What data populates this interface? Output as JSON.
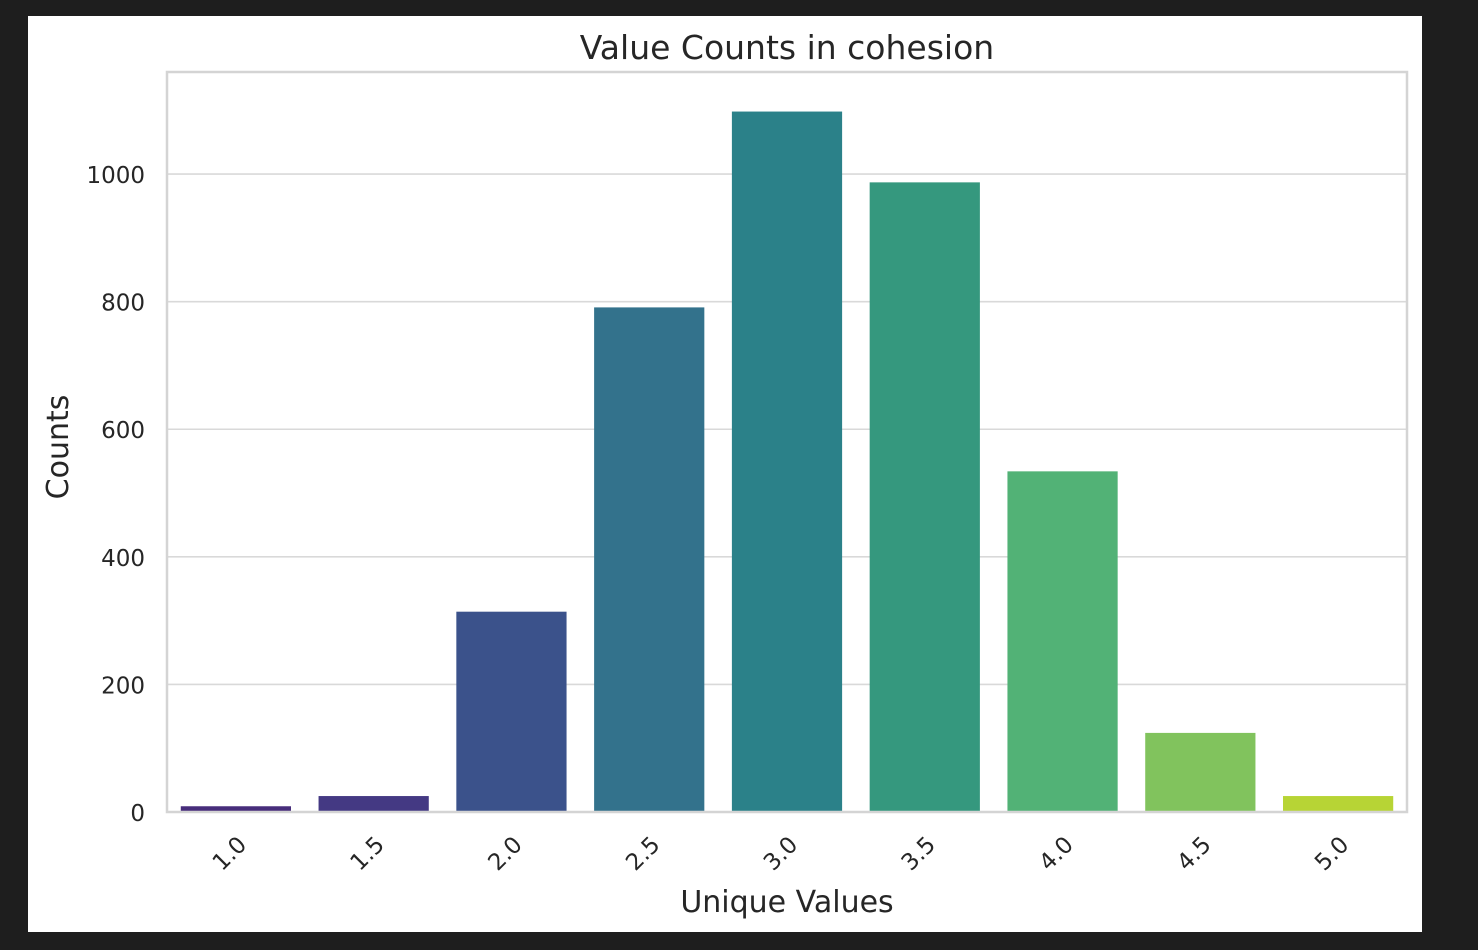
{
  "chart_data": {
    "type": "bar",
    "title": "Value Counts in cohesion",
    "xlabel": "Unique Values",
    "ylabel": "Counts",
    "categories": [
      "1.0",
      "1.5",
      "2.0",
      "2.5",
      "3.0",
      "3.5",
      "4.0",
      "4.5",
      "5.0"
    ],
    "values": [
      9,
      25,
      314,
      791,
      1098,
      987,
      534,
      124,
      25
    ],
    "colors": [
      "#472d7b",
      "#443983",
      "#3b528b",
      "#33728c",
      "#2b8189",
      "#35987e",
      "#52b276",
      "#81c35d",
      "#b7d435"
    ],
    "ylim": [
      0,
      1160
    ],
    "yticks": [
      0,
      200,
      400,
      600,
      800,
      1000
    ],
    "ytick_labels": [
      "0",
      "200",
      "400",
      "600",
      "800",
      "1000"
    ],
    "grid": true,
    "legend": "none"
  }
}
